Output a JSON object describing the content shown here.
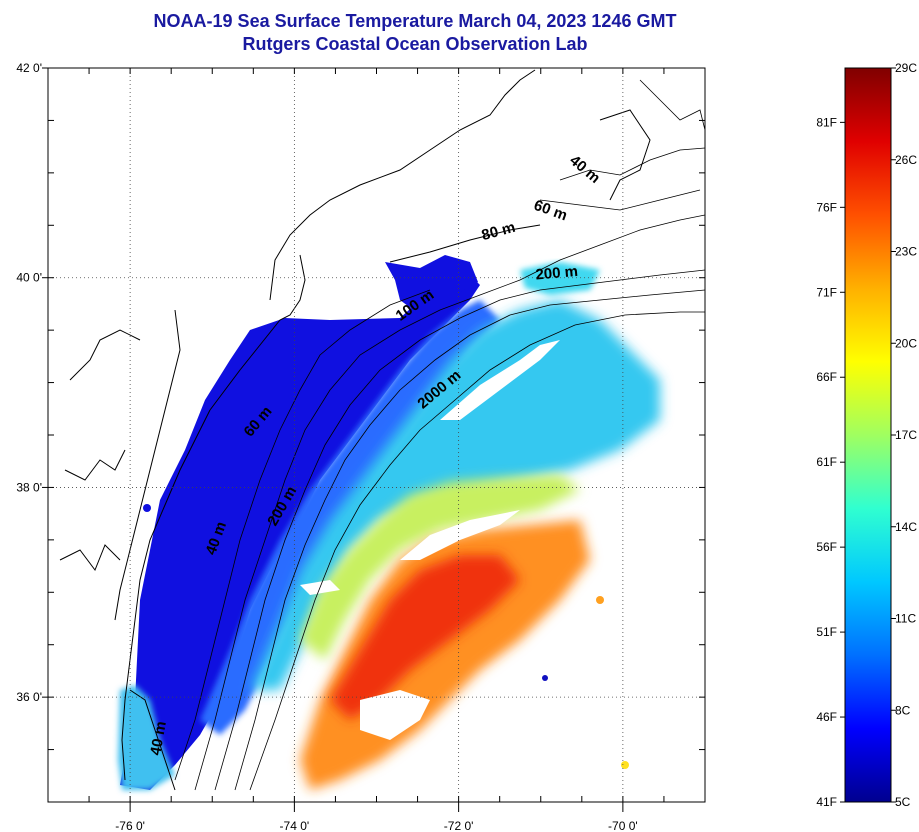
{
  "title": {
    "line1": "NOAA-19 Sea Surface Temperature March 04, 2023 1246 GMT",
    "line2": "Rutgers Coastal Ocean Observation Lab"
  },
  "map": {
    "lon_range": [
      -77,
      -69
    ],
    "lat_range": [
      35,
      42
    ],
    "lon_ticks": [
      {
        "value": -76,
        "label": "-76 0'"
      },
      {
        "value": -74,
        "label": "-74 0'"
      },
      {
        "value": -72,
        "label": "-72 0'"
      },
      {
        "value": -70,
        "label": "-70 0'"
      }
    ],
    "lat_ticks": [
      {
        "value": 42,
        "label": "42 0'"
      },
      {
        "value": 40,
        "label": "40 0'"
      },
      {
        "value": 38,
        "label": "38 0'"
      },
      {
        "value": 36,
        "label": "36 0'"
      }
    ],
    "grid": "dotted",
    "contour_labels": [
      {
        "text": "40 m",
        "lon": -70.5,
        "lat": 41.0,
        "rot": 40
      },
      {
        "text": "60 m",
        "lon": -70.9,
        "lat": 40.6,
        "rot": 20
      },
      {
        "text": "80 m",
        "lon": -71.5,
        "lat": 40.4,
        "rot": -15
      },
      {
        "text": "200 m",
        "lon": -70.8,
        "lat": 40.0,
        "rot": -5
      },
      {
        "text": "100 m",
        "lon": -72.5,
        "lat": 39.7,
        "rot": -35
      },
      {
        "text": "2000 m",
        "lon": -72.2,
        "lat": 38.9,
        "rot": -40
      },
      {
        "text": "60 m",
        "lon": -74.4,
        "lat": 38.6,
        "rot": -50
      },
      {
        "text": "200 m",
        "lon": -74.1,
        "lat": 37.8,
        "rot": -60
      },
      {
        "text": "40 m",
        "lon": -74.9,
        "lat": 37.5,
        "rot": -70
      },
      {
        "text": "40 m",
        "lon": -75.6,
        "lat": 35.6,
        "rot": -80
      }
    ]
  },
  "colorbar": {
    "colors": [
      "#00008f",
      "#0000ff",
      "#0070ff",
      "#00c8ff",
      "#30ffd0",
      "#a0ff60",
      "#ffff00",
      "#ffb000",
      "#ff5000",
      "#e00000",
      "#800000"
    ],
    "f_labels": [
      "81F",
      "76F",
      "71F",
      "66F",
      "61F",
      "56F",
      "51F",
      "46F",
      "41F"
    ],
    "c_labels": [
      "29C",
      "26C",
      "23C",
      "20C",
      "17C",
      "14C",
      "11C",
      "8C",
      "5C"
    ]
  }
}
